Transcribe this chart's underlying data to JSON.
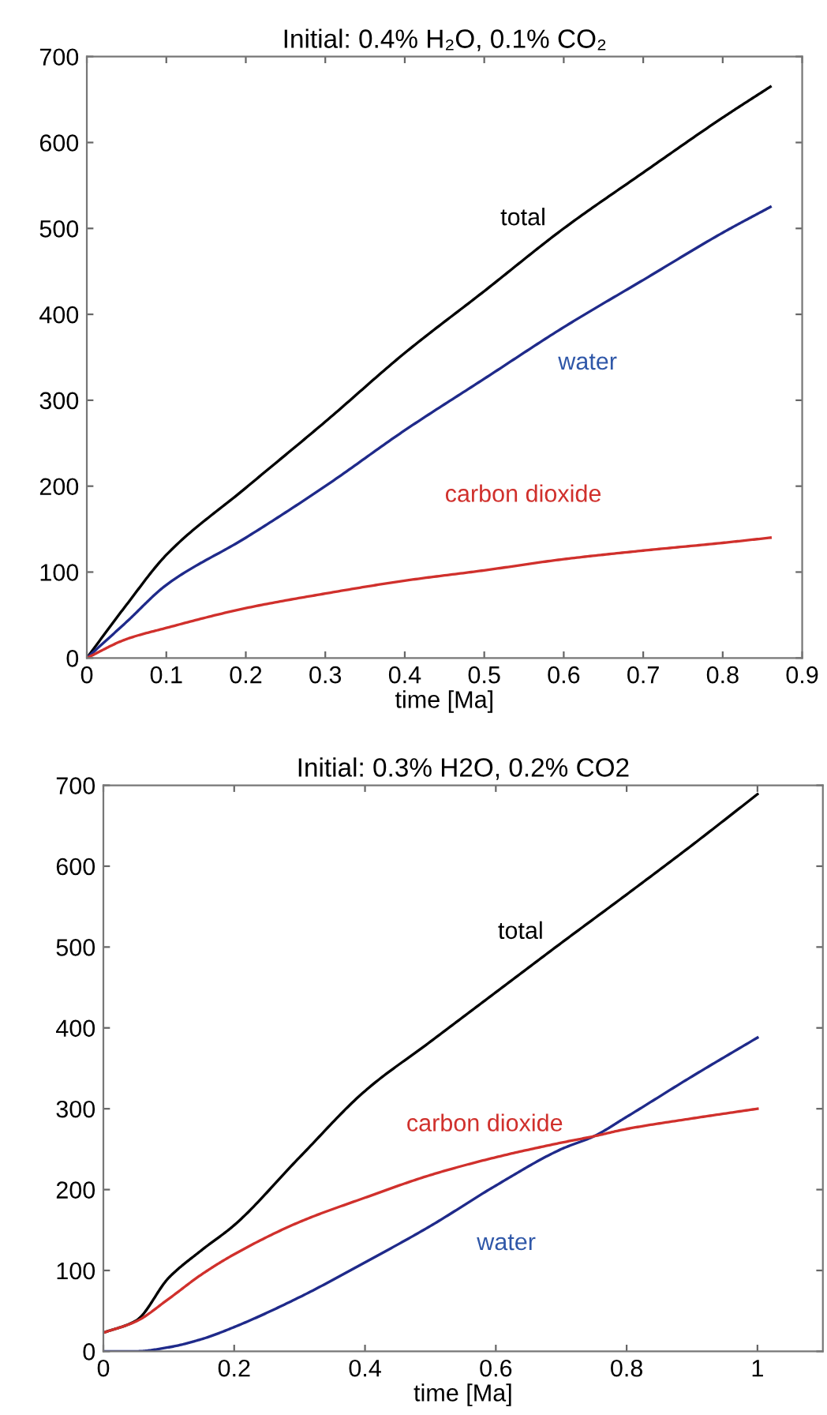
{
  "chart_data": [
    {
      "type": "line",
      "title": "Initial: 0.4% H₂O, 0.1% CO₂",
      "xlabel": "time [Ma]",
      "xlim": [
        0,
        0.9
      ],
      "xticks": [
        0,
        0.1,
        0.2,
        0.3,
        0.4,
        0.5,
        0.6,
        0.7,
        0.8,
        0.9
      ],
      "ylim": [
        0,
        700
      ],
      "yticks": [
        0,
        100,
        200,
        300,
        400,
        500,
        600,
        700
      ],
      "grid": false,
      "legend": false,
      "series": [
        {
          "name": "total",
          "color": "#000000",
          "x": [
            0,
            0.05,
            0.1,
            0.2,
            0.3,
            0.4,
            0.5,
            0.6,
            0.7,
            0.8,
            0.86
          ],
          "values": [
            0,
            62,
            120,
            198,
            275,
            355,
            427,
            500,
            565,
            629,
            665
          ]
        },
        {
          "name": "water",
          "color": "#1f2a8a",
          "x": [
            0,
            0.05,
            0.1,
            0.2,
            0.3,
            0.4,
            0.5,
            0.6,
            0.7,
            0.8,
            0.86
          ],
          "values": [
            0,
            42,
            85,
            140,
            200,
            265,
            325,
            385,
            440,
            495,
            525
          ]
        },
        {
          "name": "carbon dioxide",
          "color": "#d0302c",
          "x": [
            0,
            0.05,
            0.1,
            0.2,
            0.3,
            0.4,
            0.5,
            0.6,
            0.7,
            0.8,
            0.86
          ],
          "values": [
            0,
            22,
            35,
            58,
            75,
            90,
            102,
            115,
            125,
            134,
            140
          ]
        }
      ]
    },
    {
      "type": "line",
      "title": "Initial: 0.3% H2O, 0.2% CO2",
      "xlabel": "time [Ma]",
      "xlim": [
        0,
        1.1
      ],
      "xticks": [
        0,
        0.2,
        0.4,
        0.6,
        0.8,
        1
      ],
      "ylim": [
        0,
        700
      ],
      "yticks": [
        0,
        100,
        200,
        300,
        400,
        500,
        600,
        700
      ],
      "grid": false,
      "legend": false,
      "series": [
        {
          "name": "total",
          "color": "#000000",
          "x": [
            0,
            0.05,
            0.1,
            0.15,
            0.2,
            0.3,
            0.4,
            0.5,
            0.6,
            0.7,
            0.8,
            0.9,
            1.0
          ],
          "values": [
            23,
            38,
            91,
            125,
            156,
            240,
            322,
            383,
            444,
            505,
            565,
            626,
            689
          ]
        },
        {
          "name": "water",
          "color": "#1f2a8a",
          "x": [
            0,
            0.05,
            0.1,
            0.15,
            0.2,
            0.3,
            0.4,
            0.5,
            0.6,
            0.7,
            0.75,
            0.8,
            0.9,
            1.0
          ],
          "values": [
            0,
            0,
            5,
            15,
            30,
            67,
            110,
            155,
            205,
            250,
            266,
            290,
            340,
            388
          ]
        },
        {
          "name": "carbon dioxide",
          "color": "#d0302c",
          "x": [
            0,
            0.05,
            0.1,
            0.15,
            0.2,
            0.3,
            0.4,
            0.5,
            0.6,
            0.7,
            0.75,
            0.8,
            0.9,
            1.0
          ],
          "values": [
            23,
            37,
            65,
            95,
            120,
            160,
            190,
            218,
            240,
            258,
            266,
            275,
            288,
            300
          ]
        }
      ]
    }
  ]
}
